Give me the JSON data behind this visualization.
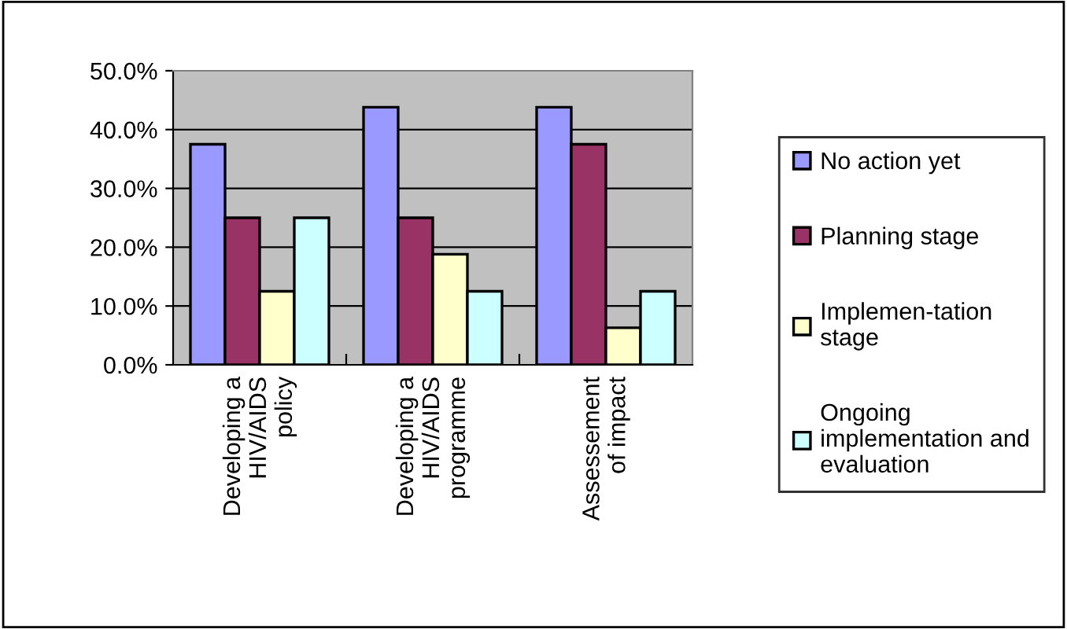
{
  "chart_data": {
    "type": "bar",
    "categories": [
      "Developing a\nHIV/AIDS\npolicy",
      "Developing a\nHIV/AIDS\nprogramme",
      "Assessement\nof impact"
    ],
    "series": [
      {
        "name": "No action yet",
        "color": "#9999ff",
        "values": [
          37.5,
          43.8,
          43.8
        ]
      },
      {
        "name": "Planning stage",
        "color": "#993366",
        "values": [
          25,
          25,
          37.5
        ]
      },
      {
        "name": "Implemen-tation\nstage",
        "color": "#ffffcc",
        "values": [
          12.5,
          18.8,
          6.3
        ]
      },
      {
        "name": "Ongoing\nimplementation and\nevaluation",
        "color": "#ccffff",
        "values": [
          25,
          12.5,
          12.5
        ]
      }
    ],
    "ylim": [
      0,
      50
    ],
    "yticks": [
      {
        "value": 0,
        "label": "0.0%"
      },
      {
        "value": 10,
        "label": "10.0%"
      },
      {
        "value": 20,
        "label": "20.0%"
      },
      {
        "value": 30,
        "label": "30.0%"
      },
      {
        "value": 40,
        "label": "40.0%"
      },
      {
        "value": 50,
        "label": "50.0%"
      }
    ],
    "grid": "y",
    "legend": "right"
  }
}
